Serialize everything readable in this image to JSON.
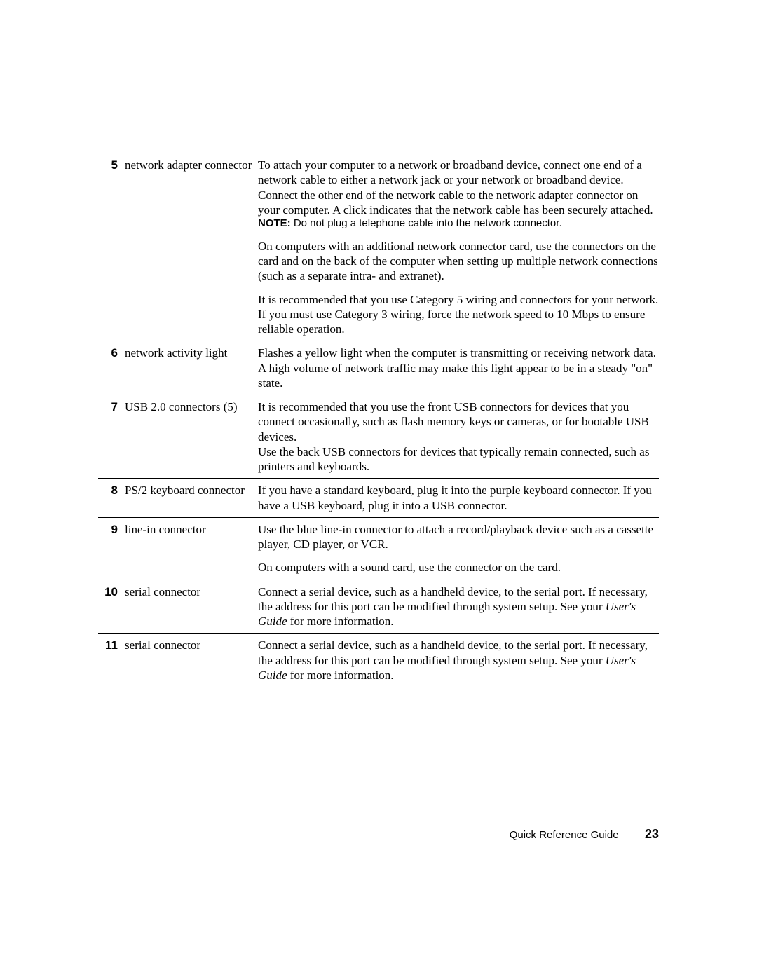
{
  "rows": [
    {
      "num": "5",
      "label": "network adapter connector",
      "cells": [
        {
          "paras": [
            "To attach your computer to a network or broadband device, connect one end of a network cable to either a network jack or your network or broadband device. Connect the other end of the network cable to the network adapter connector on your computer. A click indicates that the network cable has been securely attached."
          ],
          "note": {
            "label": "NOTE:",
            "text": "Do not plug a telephone cable into the network connector."
          }
        },
        {
          "paras": [
            "On computers with an additional network connector card, use the connectors on the card and on the back of the computer when setting up multiple network connections (such as a separate intra- and extranet)."
          ]
        },
        {
          "paras": [
            "It is recommended that you use Category 5 wiring and connectors for your network. If you must use Category 3 wiring, force the network speed to 10 Mbps to ensure reliable operation."
          ]
        }
      ]
    },
    {
      "num": "6",
      "label": "network activity light",
      "cells": [
        {
          "paras": [
            "Flashes a yellow light when the computer is transmitting or receiving network data. A high volume of network traffic may make this light appear to be in a steady \"on\" state."
          ]
        }
      ]
    },
    {
      "num": "7",
      "label": "USB 2.0 connectors (5)",
      "cells": [
        {
          "paras": [
            "It is recommended that you use the front USB connectors for devices that you connect occasionally, such as flash memory keys or cameras, or for bootable USB devices.",
            "Use the back USB connectors for devices that typically remain connected, such as printers and keyboards."
          ]
        }
      ]
    },
    {
      "num": "8",
      "label": "PS/2 keyboard connector",
      "cells": [
        {
          "paras": [
            "If you have a standard keyboard, plug it into the purple keyboard connector. If you have a USB keyboard, plug it into a USB connector."
          ]
        }
      ]
    },
    {
      "num": "9",
      "label": "line-in connector",
      "cells": [
        {
          "paras": [
            "Use the blue line-in connector to attach a record/playback device such as a cassette player, CD player, or VCR."
          ]
        },
        {
          "paras": [
            "On computers with a sound card, use the connector on the card."
          ]
        }
      ]
    },
    {
      "num": "10",
      "label": "serial connector",
      "cells": [
        {
          "mixed": [
            {
              "t": "Connect a serial device, such as a handheld device, to the serial port. If necessary, the address for this port can be modified through system setup. See your "
            },
            {
              "t": "User's Guide",
              "style": "italic"
            },
            {
              "t": " for more information."
            }
          ]
        }
      ]
    },
    {
      "num": "11",
      "label": "serial connector",
      "cells": [
        {
          "mixed": [
            {
              "t": "Connect a serial device, such as a handheld device, to the serial port. If necessary, the address for this port can be modified through system setup. See your "
            },
            {
              "t": "User's Guide",
              "style": "italic"
            },
            {
              "t": " for more information."
            }
          ]
        }
      ]
    }
  ],
  "footer": {
    "title": "Quick Reference Guide",
    "page": "23"
  },
  "table_style": {
    "border_color": "#000000",
    "font_family_body": "Georgia, serif",
    "font_family_ui": "Arial, sans-serif",
    "font_size_body": 17,
    "font_size_num": 16,
    "font_size_note": 15,
    "background": "#ffffff"
  }
}
